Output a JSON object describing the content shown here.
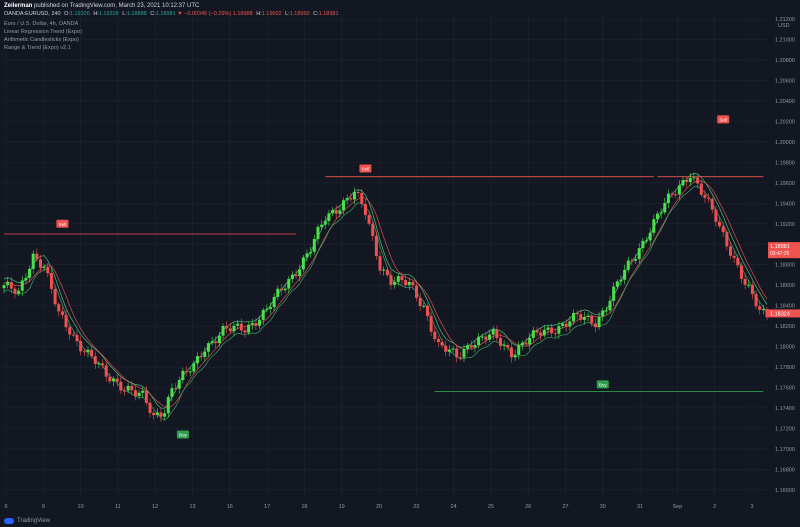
{
  "header": {
    "author": "Zeilerman",
    "published": "published on TradingView.com, March 23, 2021 10:12:37 UTC",
    "symbol": "OANDA:EURUSD, 240",
    "o_label": "O:",
    "o": "1.19326",
    "h_label": "H:",
    "h": "1.19328",
    "l_label": "L:",
    "l": "1.18888",
    "c_label": "C:",
    "c": "1.18981",
    "change": "▼ −0.00345 (−0.29%)",
    "bid": "1.18988",
    "bid_h_label": "H:",
    "bid_h": "1.19002",
    "bid_l_label": "L:",
    "bid_l": "1.18960",
    "bid_c_label": "C:",
    "bid_c": "1.18981"
  },
  "indicators": [
    "Euro / U.S. Dollar, 4h, OANDA",
    "Linear Regression Trend (Expo)",
    "Arithmetic Candlesticks (Expo)",
    "Range & Trend (Expo) v2.1"
  ],
  "footer": {
    "brand": "TradingView"
  },
  "colors": {
    "background": "#131722",
    "up": "#4be04b",
    "down": "#f05050",
    "grid": "#1f2433",
    "axis_text": "#9598a1",
    "sell": "#ef5350",
    "buy": "#2e9e4c"
  },
  "chart_data": {
    "type": "candlestick",
    "currency": "USD",
    "y_ticks": [
      "1.21200",
      "1.21000",
      "1.20800",
      "1.20600",
      "1.20400",
      "1.20200",
      "1.20000",
      "1.19800",
      "1.19600",
      "1.19400",
      "1.19200",
      "1.19000",
      "1.18800",
      "1.18600",
      "1.18400",
      "1.18200",
      "1.18000",
      "1.17800",
      "1.17600",
      "1.17400",
      "1.17200",
      "1.17000",
      "1.16800",
      "1.16600"
    ],
    "x_ticks": [
      "6",
      "9",
      "10",
      "11",
      "12",
      "13",
      "16",
      "17",
      "18",
      "19",
      "20",
      "23",
      "24",
      "25",
      "26",
      "27",
      "30",
      "31",
      "Sep",
      "2",
      "3"
    ],
    "ylim": [
      1.1652,
      1.2125
    ],
    "price_labels": [
      {
        "value": "1.18981",
        "sub": "03:47:25",
        "price": 1.18981,
        "color": "#ef5350"
      },
      {
        "value": "1.18324",
        "price": 1.18324,
        "color": "#ef5350"
      }
    ],
    "levels": [
      {
        "label": "Sell",
        "price": 1.191,
        "color": "#ef5350",
        "from": 0,
        "to": 80
      },
      {
        "label": "Sell",
        "price": 1.1966,
        "color": "#ef5350",
        "from": 88,
        "to": 178
      },
      {
        "label": "Sell",
        "price": 1.1966,
        "color": "#ef5350",
        "from": 179,
        "to": 208
      },
      {
        "label": "Buy",
        "price": 1.1756,
        "color": "#2e9e4c",
        "from": 118,
        "to": 208
      }
    ],
    "markers": [
      {
        "label": "Sell",
        "index": 16,
        "price": 1.192,
        "color": "#ef5350"
      },
      {
        "label": "Sell",
        "index": 99,
        "price": 1.1974,
        "color": "#ef5350"
      },
      {
        "label": "Sell",
        "index": 197,
        "price": 1.2022,
        "color": "#ef5350"
      },
      {
        "label": "Buy",
        "index": 49,
        "price": 1.1714,
        "color": "#2e9e4c"
      },
      {
        "label": "Buy",
        "index": 164,
        "price": 1.1763,
        "color": "#2e9e4c"
      }
    ],
    "anchors": [
      [
        0,
        1.186
      ],
      [
        4,
        1.185
      ],
      [
        8,
        1.189
      ],
      [
        11,
        1.188
      ],
      [
        15,
        1.183
      ],
      [
        19,
        1.181
      ],
      [
        24,
        1.179
      ],
      [
        28,
        1.177
      ],
      [
        34,
        1.176
      ],
      [
        38,
        1.175
      ],
      [
        41,
        1.173
      ],
      [
        44,
        1.174
      ],
      [
        46,
        1.176
      ],
      [
        52,
        1.178
      ],
      [
        55,
        1.18
      ],
      [
        60,
        1.1815
      ],
      [
        66,
        1.1818
      ],
      [
        72,
        1.1835
      ],
      [
        78,
        1.1865
      ],
      [
        84,
        1.1895
      ],
      [
        88,
        1.1925
      ],
      [
        93,
        1.1942
      ],
      [
        96,
        1.195
      ],
      [
        99,
        1.193
      ],
      [
        103,
        1.188
      ],
      [
        106,
        1.1865
      ],
      [
        111,
        1.186
      ],
      [
        115,
        1.184
      ],
      [
        119,
        1.18
      ],
      [
        124,
        1.179
      ],
      [
        128,
        1.1805
      ],
      [
        134,
        1.181
      ],
      [
        139,
        1.1795
      ],
      [
        144,
        1.1807
      ],
      [
        148,
        1.1815
      ],
      [
        152,
        1.182
      ],
      [
        157,
        1.1828
      ],
      [
        162,
        1.1825
      ],
      [
        165,
        1.184
      ],
      [
        168,
        1.186
      ],
      [
        172,
        1.1885
      ],
      [
        177,
        1.1915
      ],
      [
        181,
        1.1938
      ],
      [
        185,
        1.1958
      ],
      [
        188,
        1.197
      ],
      [
        191,
        1.195
      ],
      [
        195,
        1.1925
      ],
      [
        199,
        1.1895
      ],
      [
        203,
        1.186
      ],
      [
        207,
        1.1835
      ],
      [
        209,
        1.1832
      ]
    ],
    "n_candles": 210
  }
}
